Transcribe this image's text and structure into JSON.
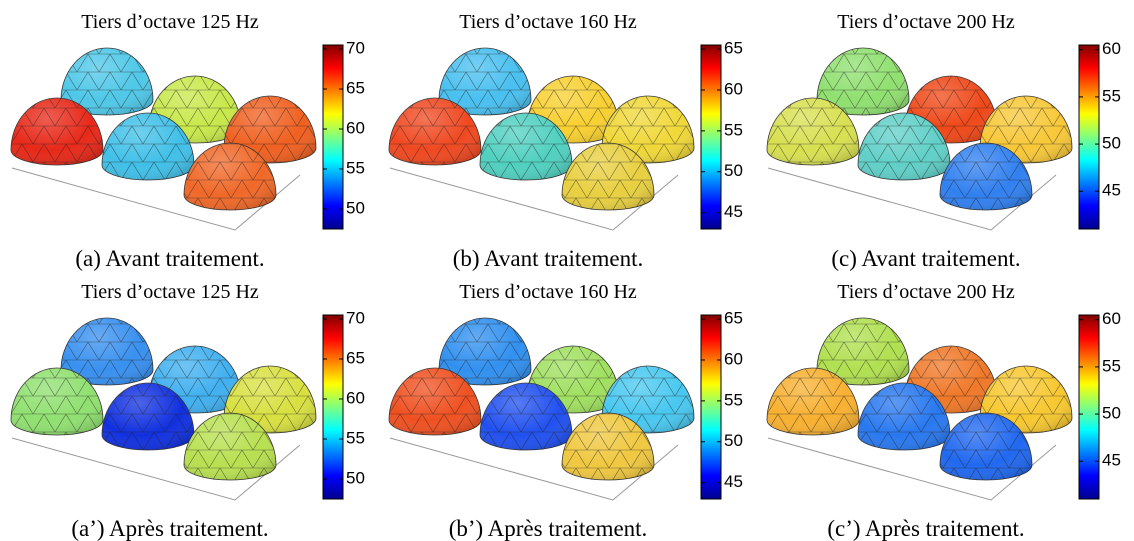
{
  "panels": [
    {
      "title": "Tiers d’octave 125 Hz",
      "caption": "(a) Avant traitement.",
      "clim": [
        47.5,
        70.5
      ],
      "ticks": [
        50,
        55,
        60,
        65,
        70
      ],
      "dome_colors": [
        "#4fc8e8",
        "#c8e84a",
        "#f06020",
        "#e82818",
        "#40c0e8",
        "#f06828"
      ]
    },
    {
      "title": "Tiers d’octave 160 Hz",
      "caption": "(b) Avant traitement.",
      "clim": [
        43,
        65.5
      ],
      "ticks": [
        45,
        50,
        55,
        60,
        65
      ],
      "dome_colors": [
        "#48c0f0",
        "#f8d030",
        "#f0d838",
        "#f04820",
        "#50d0c0",
        "#e8d040"
      ]
    },
    {
      "title": "Tiers d’octave 200 Hz",
      "caption": "(c) Avant traitement.",
      "clim": [
        41,
        60.5
      ],
      "ticks": [
        45,
        50,
        55,
        60
      ],
      "dome_colors": [
        "#90e070",
        "#f04818",
        "#f8c838",
        "#d8e050",
        "#60d0c8",
        "#3080f0"
      ]
    },
    {
      "title": "Tiers d’octave 125 Hz",
      "caption": "(a’) Après traitement.",
      "clim": [
        47.5,
        70.5
      ],
      "ticks": [
        50,
        55,
        60,
        65,
        70
      ],
      "dome_colors": [
        "#3890f0",
        "#40b0f0",
        "#d8e040",
        "#90e070",
        "#1030e0",
        "#b8e050"
      ]
    },
    {
      "title": "Tiers d’octave 160 Hz",
      "caption": "(b’) Après traitement.",
      "clim": [
        43,
        65.5
      ],
      "ticks": [
        45,
        50,
        55,
        60,
        65
      ],
      "dome_colors": [
        "#3090f0",
        "#a0e060",
        "#48c8f0",
        "#f05020",
        "#2050f0",
        "#f0c840"
      ]
    },
    {
      "title": "Tiers d’octave 200 Hz",
      "caption": "(c’) Après traitement.",
      "clim": [
        41,
        60.5
      ],
      "ticks": [
        45,
        50,
        55,
        60
      ],
      "dome_colors": [
        "#b0e050",
        "#f07828",
        "#f8c830",
        "#f8b030",
        "#2878f0",
        "#2068f0"
      ]
    }
  ]
}
